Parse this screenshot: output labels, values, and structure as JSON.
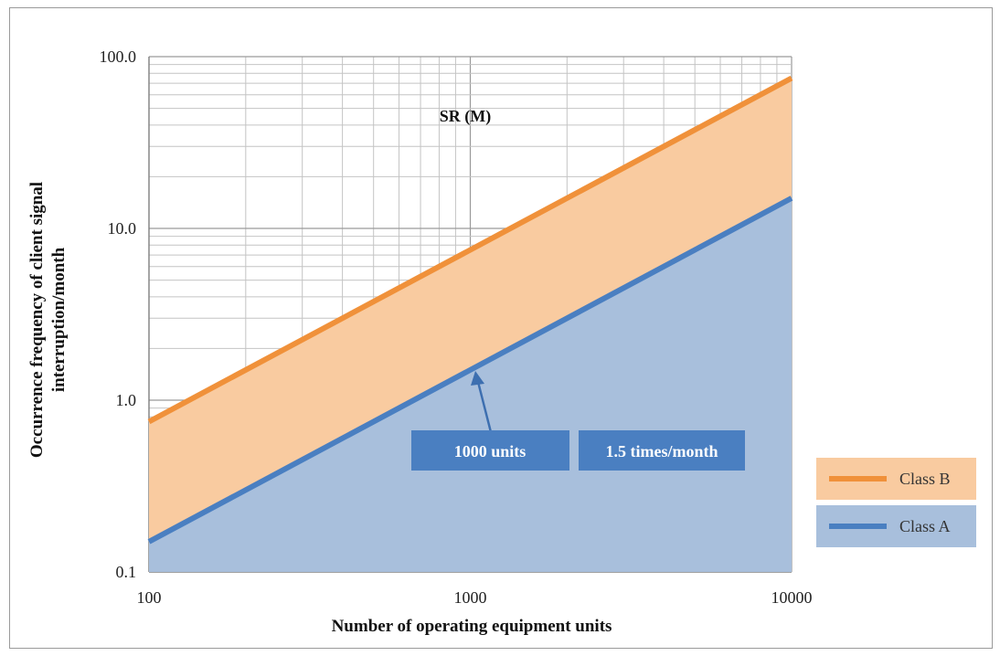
{
  "chart_data": {
    "type": "area",
    "title": "SR (M)",
    "xlabel": "Number of operating equipment units",
    "ylabel_line1": "Occurrence frequency of client signal",
    "ylabel_line2": "interruption/month",
    "x_scale": "log",
    "y_scale": "log",
    "xlim": [
      100,
      10000
    ],
    "ylim": [
      0.1,
      100
    ],
    "x_ticks": [
      {
        "value": 100,
        "label": "100"
      },
      {
        "value": 1000,
        "label": "1000"
      },
      {
        "value": 10000,
        "label": "10000"
      }
    ],
    "y_ticks": [
      {
        "value": 0.1,
        "label": "0.1"
      },
      {
        "value": 1,
        "label": "1.0"
      },
      {
        "value": 10,
        "label": "10.0"
      },
      {
        "value": 100,
        "label": "100.0"
      }
    ],
    "grid": true,
    "legend_position": "right",
    "series": [
      {
        "name": "Class B",
        "color": "#f0913a",
        "fill": "#f9cba0",
        "x": [
          100,
          10000
        ],
        "y": [
          0.75,
          75
        ]
      },
      {
        "name": "Class A",
        "color": "#4a7fc1",
        "fill": "#a8bfdc",
        "x": [
          100,
          10000
        ],
        "y": [
          0.15,
          15
        ]
      }
    ],
    "annotations": [
      {
        "text": "1000 units",
        "point_x": 1000,
        "point_y": 1.5
      },
      {
        "text": "1.5 times/month"
      }
    ]
  }
}
